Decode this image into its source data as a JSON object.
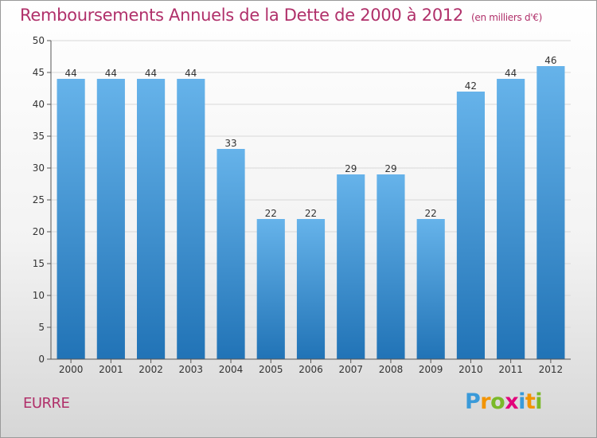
{
  "title": "Remboursements Annuels de la Dette de 2000 à 2012",
  "subtitle": "(en milliers d'€)",
  "commune": "EURRE",
  "brand": {
    "letters": [
      "P",
      "r",
      "o",
      "x",
      "i",
      "t",
      "i"
    ],
    "colors": [
      "#3a9ad9",
      "#f29400",
      "#7ab929",
      "#e2007a",
      "#3a9ad9",
      "#f29400",
      "#7ab929"
    ]
  },
  "colors": {
    "bar_top": "#66b3ea",
    "bar_bottom": "#2173b6",
    "axis": "#555555",
    "grid": "#d8d8d8",
    "title": "#b0306a"
  },
  "chart_data": {
    "type": "bar",
    "title": "Remboursements Annuels de la Dette de 2000 à 2012",
    "subtitle": "(en milliers d'€)",
    "xlabel": "",
    "ylabel": "",
    "categories": [
      "2000",
      "2001",
      "2002",
      "2003",
      "2004",
      "2005",
      "2006",
      "2007",
      "2008",
      "2009",
      "2010",
      "2011",
      "2012"
    ],
    "values": [
      44,
      44,
      44,
      44,
      33,
      22,
      22,
      29,
      29,
      22,
      42,
      44,
      46
    ],
    "ylim": [
      0,
      50
    ],
    "yticks": [
      0,
      5,
      10,
      15,
      20,
      25,
      30,
      35,
      40,
      45,
      50
    ],
    "grid": true,
    "data_labels": true,
    "legend": "none"
  }
}
